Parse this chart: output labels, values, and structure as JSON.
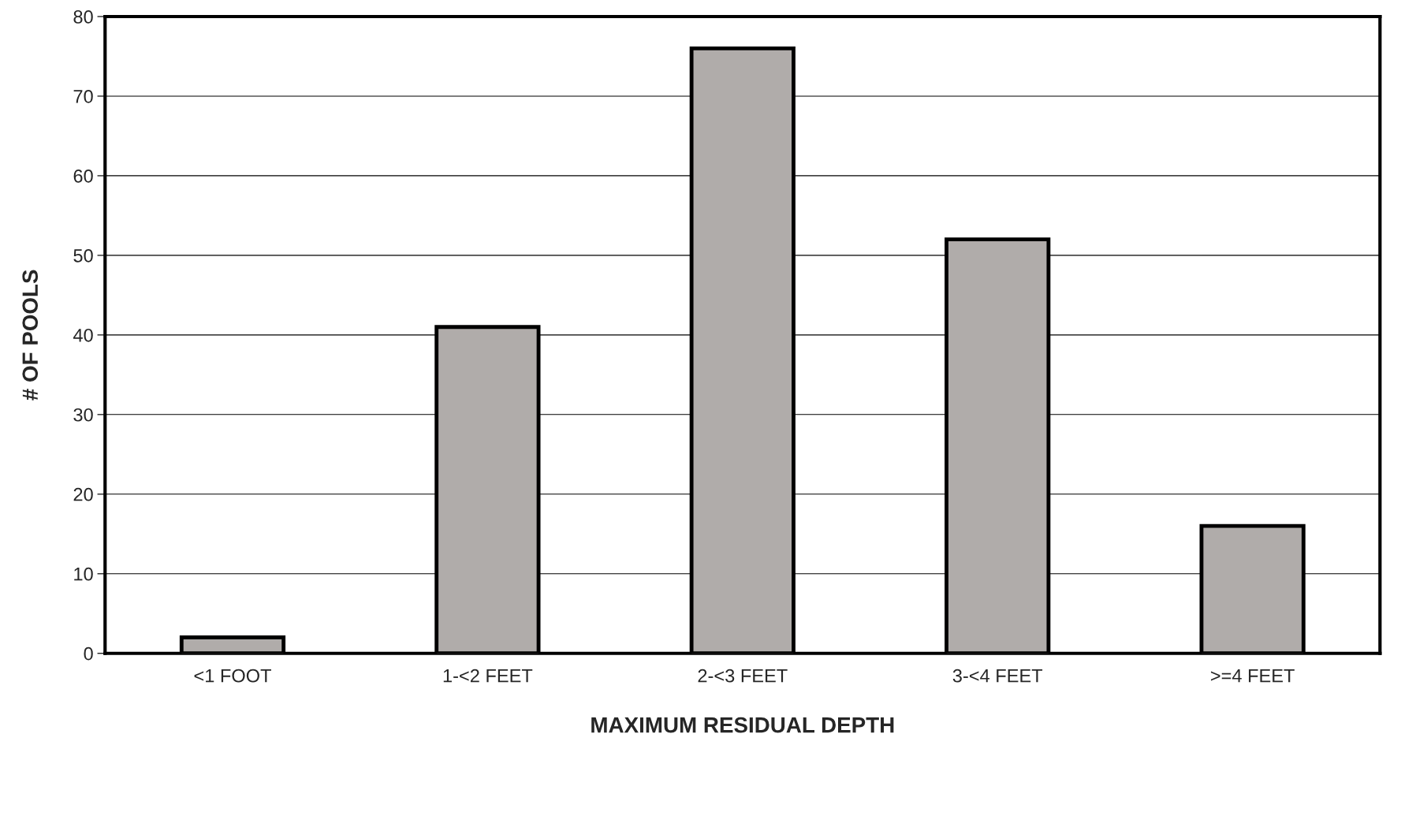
{
  "chart_data": {
    "type": "bar",
    "xlabel": "MAXIMUM RESIDUAL DEPTH",
    "ylabel": "# OF POOLS",
    "categories": [
      "<1 FOOT",
      "1-<2 FEET",
      "2-<3 FEET",
      "3-<4 FEET",
      ">=4 FEET"
    ],
    "values": [
      2,
      41,
      76,
      52,
      16
    ],
    "color": "#b0acaa",
    "ylim": [
      0,
      80
    ],
    "yticks": [
      0,
      10,
      20,
      30,
      40,
      50,
      60,
      70,
      80
    ],
    "grid": "y",
    "legend": false
  }
}
